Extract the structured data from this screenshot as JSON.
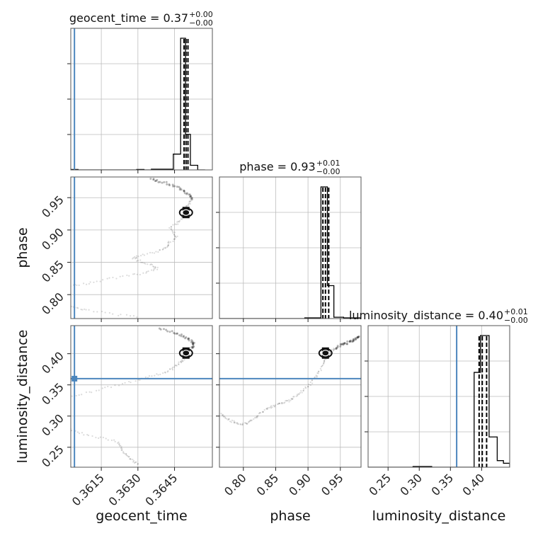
{
  "chart_data": {
    "type": "corner",
    "parameters": [
      "geocent_time",
      "phase",
      "luminosity_distance"
    ],
    "axis_labels": {
      "geocent_time": "geocent_time",
      "phase": "phase",
      "luminosity_distance": "luminosity_distance"
    },
    "ranges": {
      "geocent_time": [
        0.36025,
        0.36605
      ],
      "phase": [
        0.763,
        0.982
      ],
      "luminosity_distance": [
        0.218,
        0.445
      ]
    },
    "ticks": {
      "geocent_time": [
        {
          "v": 0.3615,
          "label": "0.3615"
        },
        {
          "v": 0.363,
          "label": "0.3630"
        },
        {
          "v": 0.3645,
          "label": "0.3645"
        }
      ],
      "phase": [
        {
          "v": 0.8,
          "label": "0.80"
        },
        {
          "v": 0.85,
          "label": "0.85"
        },
        {
          "v": 0.9,
          "label": "0.90"
        },
        {
          "v": 0.95,
          "label": "0.95"
        }
      ],
      "luminosity_distance": [
        {
          "v": 0.25,
          "label": "0.25"
        },
        {
          "v": 0.3,
          "label": "0.30"
        },
        {
          "v": 0.35,
          "label": "0.35"
        },
        {
          "v": 0.4,
          "label": "0.40"
        }
      ]
    },
    "truths": {
      "geocent_time": 0.3604,
      "phase": null,
      "luminosity_distance": 0.36
    },
    "titles": {
      "geocent_time": {
        "base": "geocent_time = 0.37",
        "plus": "+0.00",
        "minus": "−0.00"
      },
      "phase": {
        "base": "phase = 0.93",
        "plus": "+0.01",
        "minus": "−0.00"
      },
      "luminosity_distance": {
        "base": "luminosity_distance = 0.40",
        "plus": "+0.01",
        "minus": "−0.00"
      }
    },
    "quantiles": {
      "geocent_time": [
        0.36489,
        0.36497,
        0.36505
      ],
      "phase": [
        0.923,
        0.927,
        0.932
      ],
      "luminosity_distance": [
        0.396,
        0.401,
        0.408
      ]
    },
    "histograms": {
      "geocent_time": {
        "edges": [
          0.36025,
          0.36055,
          0.36085,
          0.36115,
          0.36145,
          0.36175,
          0.36205,
          0.36235,
          0.36265,
          0.36295,
          0.36325,
          0.36355,
          0.36385,
          0.36415,
          0.36445,
          0.36475,
          0.36495,
          0.36515,
          0.36545,
          0.36575
        ],
        "counts": [
          0.003,
          0.0,
          0.0,
          0.0,
          0.0,
          0.0,
          0.0,
          0.0,
          0.0,
          0.003,
          0.0,
          0.005,
          0.005,
          0.005,
          0.12,
          1.0,
          0.27,
          0.035,
          0.0
        ]
      },
      "phase": {
        "edges": [
          0.763,
          0.775,
          0.79,
          0.805,
          0.82,
          0.835,
          0.85,
          0.865,
          0.88,
          0.895,
          0.91,
          0.92,
          0.93,
          0.94,
          0.955,
          0.97,
          0.982
        ],
        "counts": [
          0.0,
          0.0,
          0.0,
          0.0,
          0.0,
          0.0,
          0.0,
          0.0,
          0.0,
          0.005,
          0.005,
          1.0,
          0.25,
          0.01,
          0.005,
          0.005
        ]
      },
      "luminosity_distance": {
        "edges": [
          0.218,
          0.23,
          0.25,
          0.27,
          0.29,
          0.305,
          0.32,
          0.335,
          0.35,
          0.37,
          0.388,
          0.398,
          0.412,
          0.425,
          0.435,
          0.445
        ],
        "counts": [
          0.0,
          0.0,
          0.0,
          0.0,
          0.005,
          0.005,
          0.0,
          0.0,
          0.0,
          0.0,
          0.72,
          1.0,
          0.23,
          0.05,
          0.03
        ]
      }
    },
    "samples": {
      "phase_trace": [
        [
          0.7649,
          0.363
        ],
        [
          0.77,
          0.362
        ],
        [
          0.7748,
          0.361
        ],
        [
          0.78,
          0.3605
        ],
        [
          0.7855,
          0.36
        ],
        [
          0.79,
          0.3598
        ],
        [
          0.7955,
          0.3596
        ],
        [
          0.8,
          0.3596
        ],
        [
          0.805,
          0.3597
        ],
        [
          0.8105,
          0.36
        ],
        [
          0.815,
          0.3605
        ],
        [
          0.82,
          0.3612
        ],
        [
          0.825,
          0.362
        ],
        [
          0.83,
          0.3628
        ],
        [
          0.835,
          0.3634
        ],
        [
          0.84,
          0.3638
        ],
        [
          0.845,
          0.3636
        ],
        [
          0.85,
          0.3632
        ],
        [
          0.855,
          0.3628
        ],
        [
          0.86,
          0.363
        ],
        [
          0.865,
          0.3636
        ],
        [
          0.87,
          0.364
        ],
        [
          0.875,
          0.3642
        ],
        [
          0.881,
          0.3643
        ],
        [
          0.888,
          0.3646
        ],
        [
          0.895,
          0.3645
        ],
        [
          0.903,
          0.3643
        ],
        [
          0.91,
          0.3646
        ],
        [
          0.918,
          0.3648
        ],
        [
          0.925,
          0.3649
        ],
        [
          0.93,
          0.3649
        ],
        [
          0.936,
          0.365
        ],
        [
          0.942,
          0.3651
        ],
        [
          0.948,
          0.3652
        ],
        [
          0.954,
          0.3651
        ],
        [
          0.96,
          0.3649
        ],
        [
          0.966,
          0.3646
        ],
        [
          0.972,
          0.3642
        ],
        [
          0.976,
          0.3638
        ],
        [
          0.98,
          0.3635
        ]
      ],
      "dist_trace": [
        [
          0.223,
          0.363
        ],
        [
          0.228,
          0.3628
        ],
        [
          0.235,
          0.3626
        ],
        [
          0.242,
          0.3624
        ],
        [
          0.25,
          0.3623
        ],
        [
          0.258,
          0.3622
        ],
        [
          0.264,
          0.3616
        ],
        [
          0.27,
          0.3609
        ],
        [
          0.278,
          0.3603
        ],
        [
          0.286,
          0.3598
        ],
        [
          0.294,
          0.3595
        ],
        [
          0.302,
          0.3592
        ],
        [
          0.31,
          0.3591
        ],
        [
          0.318,
          0.3593
        ],
        [
          0.326,
          0.3598
        ],
        [
          0.334,
          0.3606
        ],
        [
          0.342,
          0.3614
        ],
        [
          0.35,
          0.3622
        ],
        [
          0.358,
          0.363
        ],
        [
          0.364,
          0.3636
        ],
        [
          0.37,
          0.3641
        ],
        [
          0.376,
          0.3644
        ],
        [
          0.382,
          0.3646
        ],
        [
          0.388,
          0.3648
        ],
        [
          0.392,
          0.3649
        ],
        [
          0.396,
          0.365
        ],
        [
          0.4,
          0.365
        ],
        [
          0.405,
          0.3651
        ],
        [
          0.41,
          0.3652
        ],
        [
          0.415,
          0.3653
        ],
        [
          0.42,
          0.3652
        ],
        [
          0.425,
          0.365
        ],
        [
          0.43,
          0.3647
        ],
        [
          0.436,
          0.3643
        ],
        [
          0.441,
          0.3638
        ]
      ],
      "phase_dist_trace": [
        [
          0.765,
          0.304
        ],
        [
          0.772,
          0.298
        ],
        [
          0.78,
          0.293
        ],
        [
          0.788,
          0.289
        ],
        [
          0.796,
          0.287
        ],
        [
          0.804,
          0.288
        ],
        [
          0.812,
          0.292
        ],
        [
          0.82,
          0.298
        ],
        [
          0.828,
          0.305
        ],
        [
          0.836,
          0.311
        ],
        [
          0.844,
          0.315
        ],
        [
          0.852,
          0.318
        ],
        [
          0.86,
          0.321
        ],
        [
          0.868,
          0.324
        ],
        [
          0.876,
          0.328
        ],
        [
          0.884,
          0.333
        ],
        [
          0.892,
          0.34
        ],
        [
          0.9,
          0.348
        ],
        [
          0.908,
          0.357
        ],
        [
          0.914,
          0.366
        ],
        [
          0.92,
          0.376
        ],
        [
          0.925,
          0.386
        ],
        [
          0.928,
          0.394
        ],
        [
          0.932,
          0.401
        ],
        [
          0.937,
          0.405
        ],
        [
          0.943,
          0.409
        ],
        [
          0.95,
          0.413
        ],
        [
          0.957,
          0.416
        ],
        [
          0.964,
          0.419
        ],
        [
          0.97,
          0.422
        ],
        [
          0.976,
          0.425
        ],
        [
          0.98,
          0.428
        ]
      ]
    }
  }
}
